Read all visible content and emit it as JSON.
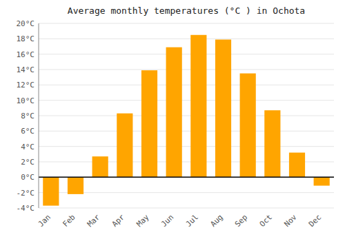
{
  "chart_data": {
    "type": "bar",
    "title": "Average monthly temperatures (°C ) in Ochota",
    "categories": [
      "Jan",
      "Feb",
      "Mar",
      "Apr",
      "May",
      "Jun",
      "Jul",
      "Aug",
      "Sep",
      "Oct",
      "Nov",
      "Dec"
    ],
    "values": [
      -3.7,
      -2.2,
      2.7,
      8.3,
      13.9,
      16.9,
      18.5,
      17.9,
      13.5,
      8.7,
      3.2,
      -1.1
    ],
    "color": "#FFA500",
    "ylim": [
      -4,
      20
    ],
    "yticks": [
      {
        "value": -4,
        "label": "-4°C"
      },
      {
        "value": -2,
        "label": "-2°C"
      },
      {
        "value": 0,
        "label": "0°C"
      },
      {
        "value": 2,
        "label": "2°C"
      },
      {
        "value": 4,
        "label": "4°C"
      },
      {
        "value": 6,
        "label": "6°C"
      },
      {
        "value": 8,
        "label": "8°C"
      },
      {
        "value": 10,
        "label": "10°C"
      },
      {
        "value": 12,
        "label": "12°C"
      },
      {
        "value": 14,
        "label": "14°C"
      },
      {
        "value": 16,
        "label": "16°C"
      },
      {
        "value": 18,
        "label": "18°C"
      },
      {
        "value": 20,
        "label": "20°C"
      }
    ],
    "grid": true
  }
}
